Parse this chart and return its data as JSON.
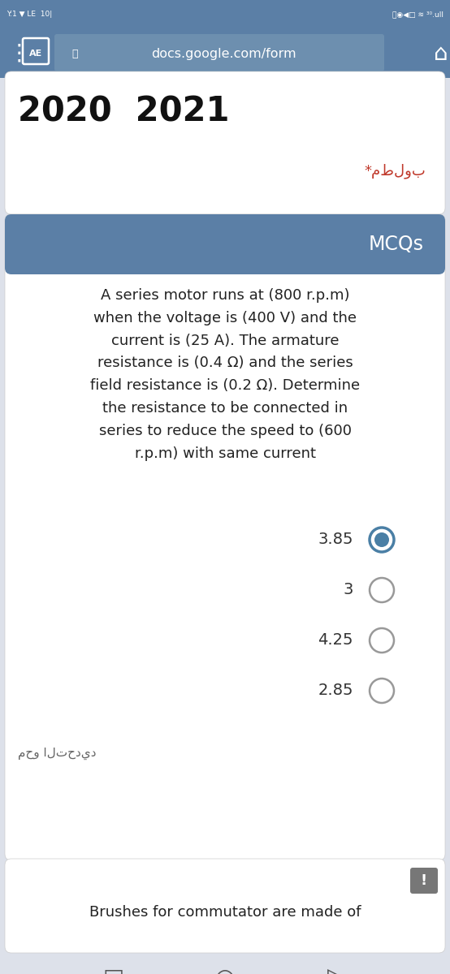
{
  "bg_color": "#dde1ea",
  "header_bg": "#5b7fa6",
  "header_text": "MCQs",
  "header_text_color": "#ffffff",
  "url_text": "docs.google.com/form",
  "year_text": "2020  2021",
  "required_text": "*مطلوب",
  "required_color": "#c0392b",
  "question_text": "A series motor runs at (800 r.p.m)\nwhen the voltage is (400 V) and the\ncurrent is (25 A). The armature\nresistance is (0.4 Ω) and the series\nfield resistance is (0.2 Ω). Determine\nthe resistance to be connected in\nseries to reduce the speed to (600\nr.p.m) with same current",
  "question_color": "#222222",
  "options": [
    "3.85",
    "3",
    "4.25",
    "2.85"
  ],
  "selected_option": 0,
  "selected_fill_color": "#4a7fa5",
  "selected_border_color": "#4a7fa5",
  "unselected_border_color": "#999999",
  "option_text_color": "#333333",
  "clear_text": "محو التحديد",
  "clear_text_color": "#666666",
  "next_question_text": "Brushes for commutator are made of",
  "next_question_color": "#222222",
  "card_bg": "#ffffff",
  "excl_bg": "#777777",
  "nav_color": "#555555"
}
